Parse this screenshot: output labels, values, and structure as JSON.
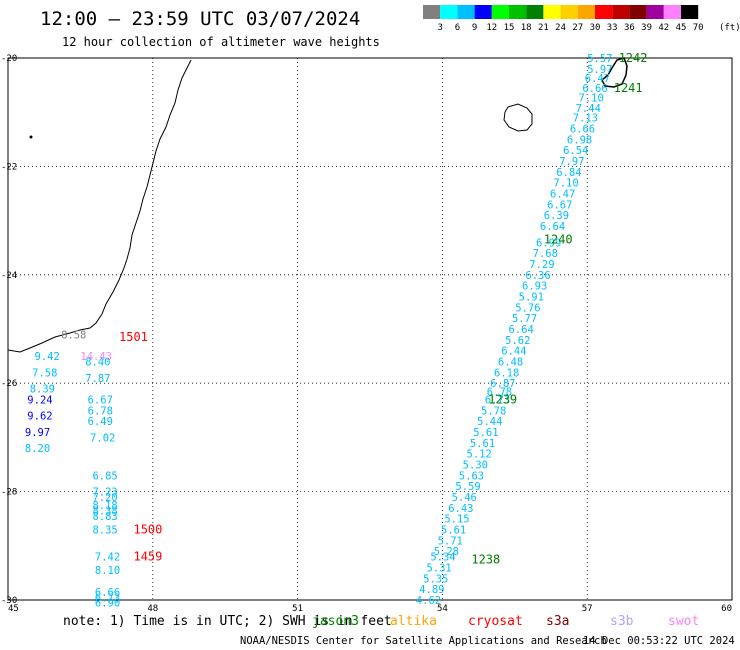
{
  "header": {
    "title": "12:00 – 23:59 UTC 03/07/2024",
    "subtitle": "12 hour collection of altimeter wave heights"
  },
  "legend": {
    "labels": [
      "3",
      "6",
      "9",
      "12",
      "15",
      "18",
      "21",
      "24",
      "27",
      "30",
      "33",
      "36",
      "39",
      "42",
      "45",
      "70"
    ],
    "unit": "(ft)",
    "colors": [
      "#808080",
      "#00ffff",
      "#00bfff",
      "#0000ff",
      "#00ff00",
      "#00c000",
      "#008000",
      "#ffff00",
      "#ffd000",
      "#ffa500",
      "#ff0000",
      "#c00000",
      "#800000",
      "#a000a0",
      "#ff80ff",
      "#000000"
    ]
  },
  "axes": {
    "lon_labels": [
      "45",
      "48",
      "51",
      "54",
      "57",
      "60"
    ],
    "lat_labels": [
      "-20",
      "-22",
      "-24",
      "-26",
      "-28",
      "-30"
    ]
  },
  "map_data": {
    "lon_range": [
      45,
      60
    ],
    "lat_range": [
      -30,
      -20
    ],
    "track_1238_1242": [
      {
        "lon": 57.0,
        "lat": -20.0,
        "v": "5.57",
        "c": "#00bfff"
      },
      {
        "lon": 57.0,
        "lat": -20.2,
        "v": "5.97",
        "c": "#00bfff"
      },
      {
        "lon": 56.95,
        "lat": -20.37,
        "v": "6.47",
        "c": "#00bfff"
      },
      {
        "lon": 56.9,
        "lat": -20.55,
        "v": "6.66",
        "c": "#00bfff"
      },
      {
        "lon": 56.82,
        "lat": -20.73,
        "v": "7.10",
        "c": "#00bfff"
      },
      {
        "lon": 56.76,
        "lat": -20.92,
        "v": "7.44",
        "c": "#00bfff"
      },
      {
        "lon": 56.7,
        "lat": -21.1,
        "v": "7.13",
        "c": "#00bfff"
      },
      {
        "lon": 56.64,
        "lat": -21.3,
        "v": "6.66",
        "c": "#00bfff"
      },
      {
        "lon": 56.58,
        "lat": -21.5,
        "v": "6.98",
        "c": "#00bfff"
      },
      {
        "lon": 56.5,
        "lat": -21.7,
        "v": "6.54",
        "c": "#00bfff"
      },
      {
        "lon": 56.42,
        "lat": -21.9,
        "v": "7.97",
        "c": "#00bfff"
      },
      {
        "lon": 56.36,
        "lat": -22.1,
        "v": "6.84",
        "c": "#00bfff"
      },
      {
        "lon": 56.3,
        "lat": -22.3,
        "v": "7.10",
        "c": "#00bfff"
      },
      {
        "lon": 56.23,
        "lat": -22.5,
        "v": "6.47",
        "c": "#00bfff"
      },
      {
        "lon": 56.17,
        "lat": -22.7,
        "v": "6.67",
        "c": "#00bfff"
      },
      {
        "lon": 56.1,
        "lat": -22.9,
        "v": "6.39",
        "c": "#00bfff"
      },
      {
        "lon": 56.02,
        "lat": -23.1,
        "v": "6.64",
        "c": "#00bfff"
      },
      {
        "lon": 55.94,
        "lat": -23.4,
        "v": "6.99",
        "c": "#00bfff"
      },
      {
        "lon": 55.87,
        "lat": -23.6,
        "v": "7.68",
        "c": "#00bfff"
      },
      {
        "lon": 55.8,
        "lat": -23.8,
        "v": "7.29",
        "c": "#00bfff"
      },
      {
        "lon": 55.72,
        "lat": -24.0,
        "v": "6.36",
        "c": "#00bfff"
      },
      {
        "lon": 55.65,
        "lat": -24.2,
        "v": "6.93",
        "c": "#00bfff"
      },
      {
        "lon": 55.58,
        "lat": -24.4,
        "v": "5.91",
        "c": "#00bfff"
      },
      {
        "lon": 55.51,
        "lat": -24.6,
        "v": "5.76",
        "c": "#00bfff"
      },
      {
        "lon": 55.44,
        "lat": -24.8,
        "v": "5.77",
        "c": "#00bfff"
      },
      {
        "lon": 55.37,
        "lat": -25.0,
        "v": "6.64",
        "c": "#00bfff"
      },
      {
        "lon": 55.3,
        "lat": -25.2,
        "v": "5.62",
        "c": "#00bfff"
      },
      {
        "lon": 55.22,
        "lat": -25.4,
        "v": "6.44",
        "c": "#00bfff"
      },
      {
        "lon": 55.15,
        "lat": -25.6,
        "v": "6.48",
        "c": "#00bfff"
      },
      {
        "lon": 55.07,
        "lat": -25.8,
        "v": "6.18",
        "c": "#00bfff"
      },
      {
        "lon": 54.99,
        "lat": -26.0,
        "v": "6.87",
        "c": "#00bfff"
      },
      {
        "lon": 54.92,
        "lat": -26.15,
        "v": "6.78",
        "c": "#00bfff"
      },
      {
        "lon": 54.88,
        "lat": -26.3,
        "v": "6.73",
        "c": "#00bfff"
      },
      {
        "lon": 54.8,
        "lat": -26.5,
        "v": "5.78",
        "c": "#00bfff"
      },
      {
        "lon": 54.72,
        "lat": -26.7,
        "v": "5.44",
        "c": "#00bfff"
      },
      {
        "lon": 54.64,
        "lat": -26.9,
        "v": "5.61",
        "c": "#00bfff"
      },
      {
        "lon": 54.57,
        "lat": -27.1,
        "v": "5.61",
        "c": "#00bfff"
      },
      {
        "lon": 54.5,
        "lat": -27.3,
        "v": "5.12",
        "c": "#00bfff"
      },
      {
        "lon": 54.42,
        "lat": -27.5,
        "v": "5.30",
        "c": "#00bfff"
      },
      {
        "lon": 54.34,
        "lat": -27.7,
        "v": "5.63",
        "c": "#00bfff"
      },
      {
        "lon": 54.27,
        "lat": -27.9,
        "v": "5.59",
        "c": "#00bfff"
      },
      {
        "lon": 54.19,
        "lat": -28.1,
        "v": "5.46",
        "c": "#00bfff"
      },
      {
        "lon": 54.12,
        "lat": -28.3,
        "v": "6.43",
        "c": "#00bfff"
      },
      {
        "lon": 54.04,
        "lat": -28.5,
        "v": "5.15",
        "c": "#00bfff"
      },
      {
        "lon": 53.97,
        "lat": -28.7,
        "v": "5.61",
        "c": "#00bfff"
      },
      {
        "lon": 53.9,
        "lat": -28.9,
        "v": "5.71",
        "c": "#00bfff"
      },
      {
        "lon": 53.82,
        "lat": -29.1,
        "v": "5.28",
        "c": "#00bfff"
      },
      {
        "lon": 53.75,
        "lat": -29.2,
        "v": "5.34",
        "c": "#00bfff"
      },
      {
        "lon": 53.67,
        "lat": -29.4,
        "v": "5.31",
        "c": "#00bfff"
      },
      {
        "lon": 53.6,
        "lat": -29.6,
        "v": "5.35",
        "c": "#00bfff"
      },
      {
        "lon": 53.52,
        "lat": -29.8,
        "v": "4.89",
        "c": "#00bfff"
      },
      {
        "lon": 53.45,
        "lat": -30.0,
        "v": "4.62",
        "c": "#00bfff"
      }
    ],
    "track_1459_1501": [
      {
        "lon": 46.1,
        "lat": -25.1,
        "v": "8.58",
        "c": "#808080"
      },
      {
        "lon": 45.55,
        "lat": -25.5,
        "v": "9.42",
        "c": "#00bfff"
      },
      {
        "lon": 46.5,
        "lat": -25.5,
        "v": "14.43",
        "c": "#ff80ff"
      },
      {
        "lon": 46.6,
        "lat": -25.6,
        "v": "8.40",
        "c": "#00bfff"
      },
      {
        "lon": 45.5,
        "lat": -25.8,
        "v": "7.58",
        "c": "#00bfff"
      },
      {
        "lon": 46.6,
        "lat": -25.9,
        "v": "7.87",
        "c": "#00bfff"
      },
      {
        "lon": 45.45,
        "lat": -26.1,
        "v": "8.39",
        "c": "#00bfff"
      },
      {
        "lon": 45.4,
        "lat": -26.3,
        "v": "9.24",
        "c": "#0000ff"
      },
      {
        "lon": 46.65,
        "lat": -26.3,
        "v": "6.67",
        "c": "#00bfff"
      },
      {
        "lon": 46.65,
        "lat": -26.5,
        "v": "6.78",
        "c": "#00bfff"
      },
      {
        "lon": 45.4,
        "lat": -26.6,
        "v": "9.62",
        "c": "#0000ff"
      },
      {
        "lon": 46.65,
        "lat": -26.7,
        "v": "6.49",
        "c": "#00bfff"
      },
      {
        "lon": 45.35,
        "lat": -26.9,
        "v": "9.97",
        "c": "#0000ff"
      },
      {
        "lon": 46.7,
        "lat": -27.0,
        "v": "7.02",
        "c": "#00bfff"
      },
      {
        "lon": 45.35,
        "lat": -27.2,
        "v": "8.20",
        "c": "#00bfff"
      },
      {
        "lon": 46.75,
        "lat": -27.7,
        "v": "6.85",
        "c": "#00bfff"
      },
      {
        "lon": 46.75,
        "lat": -28.0,
        "v": "7.23",
        "c": "#00bfff"
      },
      {
        "lon": 46.75,
        "lat": -28.1,
        "v": "7.20",
        "c": "#00bfff"
      },
      {
        "lon": 46.75,
        "lat": -28.25,
        "v": "8.18",
        "c": "#00bfff"
      },
      {
        "lon": 46.75,
        "lat": -28.35,
        "v": "8.38",
        "c": "#00bfff"
      },
      {
        "lon": 46.75,
        "lat": -28.45,
        "v": "8.83",
        "c": "#00bfff"
      },
      {
        "lon": 46.75,
        "lat": -28.7,
        "v": "8.35",
        "c": "#00bfff"
      },
      {
        "lon": 46.8,
        "lat": -29.2,
        "v": "7.42",
        "c": "#00bfff"
      },
      {
        "lon": 46.8,
        "lat": -29.45,
        "v": "8.10",
        "c": "#00bfff"
      },
      {
        "lon": 46.8,
        "lat": -29.85,
        "v": "6.66",
        "c": "#00bfff"
      },
      {
        "lon": 46.8,
        "lat": -29.95,
        "v": "6.73",
        "c": "#00bfff"
      },
      {
        "lon": 46.8,
        "lat": -30.05,
        "v": "6.90",
        "c": "#00bfff"
      }
    ],
    "pass_labels": [
      {
        "lon": 57.65,
        "lat": -20.0,
        "v": "1242",
        "c": "#008000"
      },
      {
        "lon": 57.55,
        "lat": -20.55,
        "v": "1241",
        "c": "#008000"
      },
      {
        "lon": 56.1,
        "lat": -23.35,
        "v": "1240",
        "c": "#008000"
      },
      {
        "lon": 54.95,
        "lat": -26.3,
        "v": "1239",
        "c": "#008000"
      },
      {
        "lon": 54.6,
        "lat": -29.25,
        "v": "1238",
        "c": "#008000"
      },
      {
        "lon": 47.3,
        "lat": -25.15,
        "v": "1501",
        "c": "#ff0000"
      },
      {
        "lon": 47.6,
        "lat": -28.7,
        "v": "1500",
        "c": "#ff0000"
      },
      {
        "lon": 47.6,
        "lat": -29.2,
        "v": "1459",
        "c": "#ff0000"
      }
    ]
  },
  "footer": {
    "note": "note: 1) Time is in UTC; 2) SWH is in feet",
    "satellites": [
      {
        "name": "jason3",
        "c": "#008000"
      },
      {
        "name": "altika",
        "c": "#ffa500"
      },
      {
        "name": "cryosat",
        "c": "#ff0000"
      },
      {
        "name": "s3a",
        "c": "#800000"
      },
      {
        "name": "s3b",
        "c": "#b0a0ff"
      },
      {
        "name": "swot",
        "c": "#ff80ff"
      }
    ],
    "credit": "NOAA/NESDIS Center for Satellite Applications and Research",
    "timestamp": "14 Dec 00:53:22 UTC 2024"
  }
}
